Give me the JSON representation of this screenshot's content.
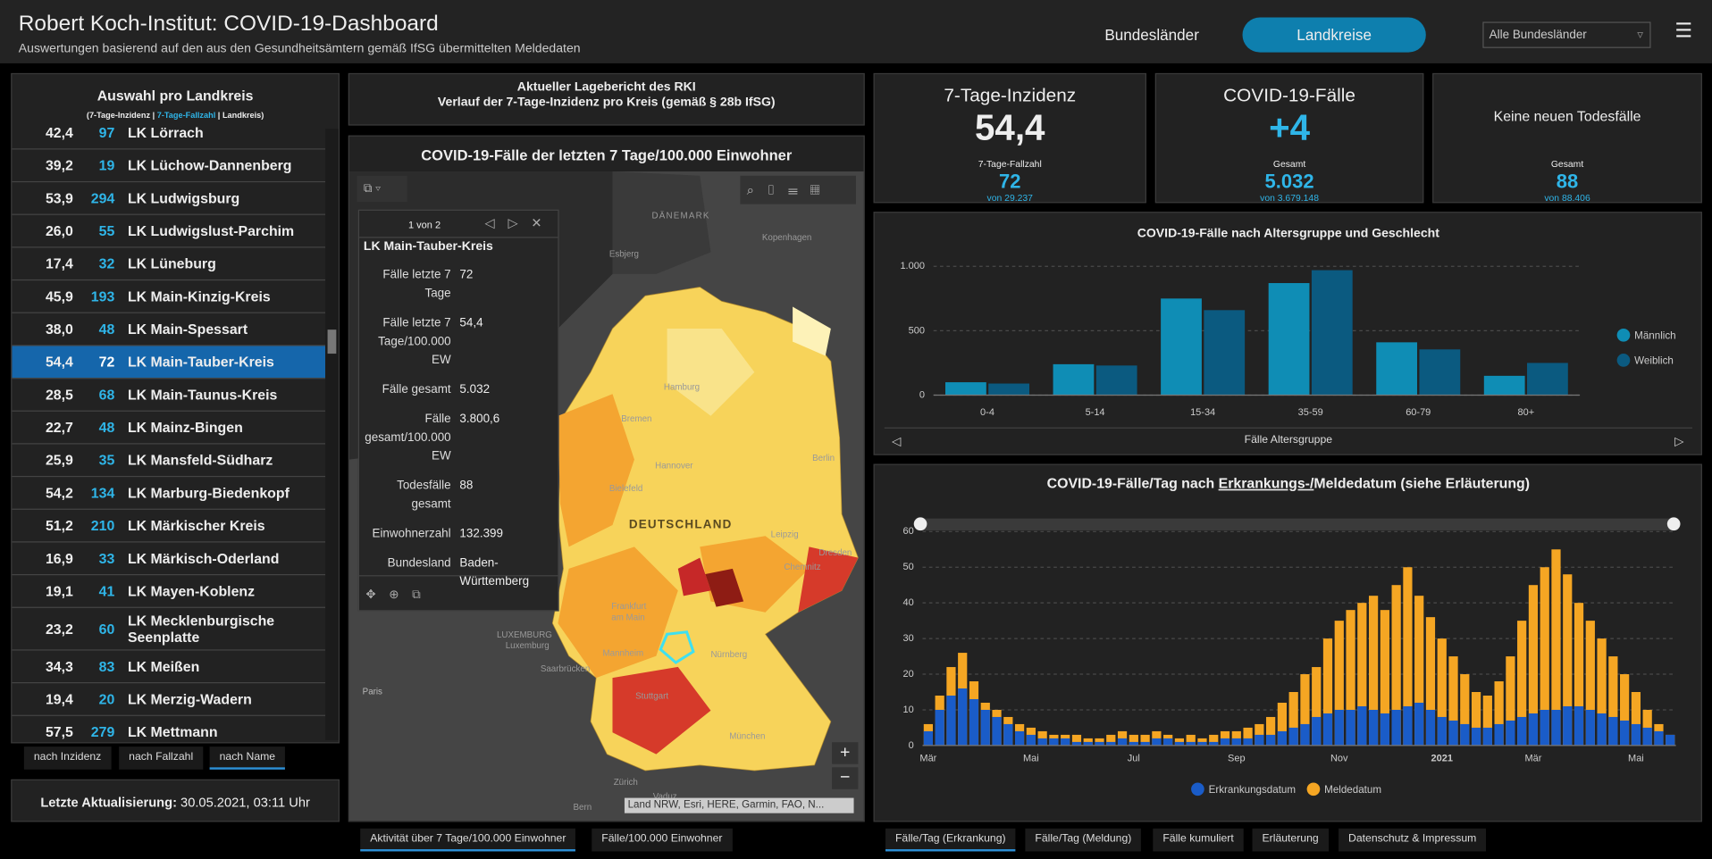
{
  "header": {
    "title": "Robert Koch-Institut: COVID-19-Dashboard",
    "subtitle": "Auswertungen basierend auf den aus den Gesundheitsämtern gemäß IfSG übermittelten Meldedaten",
    "nav": [
      "Bundesländer",
      "Landkreise"
    ],
    "dropdown": "Alle Bundesländer"
  },
  "district_list": {
    "title": "Auswahl pro Landkreis",
    "legend": [
      "(7-Tage-Inzidenz",
      "|",
      "7-Tage-Fallzahl",
      "|",
      "Landkreis)"
    ],
    "rows": [
      [
        "42,4",
        "97",
        "LK Lörrach"
      ],
      [
        "39,2",
        "19",
        "LK Lüchow-Dannenberg"
      ],
      [
        "53,9",
        "294",
        "LK Ludwigsburg"
      ],
      [
        "26,0",
        "55",
        "LK Ludwigslust-Parchim"
      ],
      [
        "17,4",
        "32",
        "LK Lüneburg"
      ],
      [
        "45,9",
        "193",
        "LK Main-Kinzig-Kreis"
      ],
      [
        "38,0",
        "48",
        "LK Main-Spessart"
      ],
      [
        "54,4",
        "72",
        "LK Main-Tauber-Kreis"
      ],
      [
        "28,5",
        "68",
        "LK Main-Taunus-Kreis"
      ],
      [
        "22,7",
        "48",
        "LK Mainz-Bingen"
      ],
      [
        "25,9",
        "35",
        "LK Mansfeld-Südharz"
      ],
      [
        "54,2",
        "134",
        "LK Marburg-Biedenkopf"
      ],
      [
        "51,2",
        "210",
        "LK Märkischer Kreis"
      ],
      [
        "16,9",
        "33",
        "LK Märkisch-Oderland"
      ],
      [
        "19,1",
        "41",
        "LK Mayen-Koblenz"
      ],
      [
        "23,2",
        "60",
        "LK Mecklenburgische Seenplatte"
      ],
      [
        "34,3",
        "83",
        "LK Meißen"
      ],
      [
        "19,4",
        "20",
        "LK Merzig-Wadern"
      ],
      [
        "57,5",
        "279",
        "LK Mettmann"
      ]
    ],
    "selected_row": 7,
    "sort_buttons": [
      "nach Inzidenz",
      "nach Fallzahl",
      "nach Name"
    ],
    "last_update": {
      "label": "Letzte Aktualisierung:",
      "value": "30.05.2021, 03:11 Uhr"
    }
  },
  "map": {
    "header": [
      "Aktueller Lagebericht des RKI",
      "Verlauf der 7-Tage-Inzidenz pro Kreis (gemäß § 28b IfSG)"
    ],
    "title": "COVID-19-Fälle der letzten 7 Tage/100.000 Einwohner",
    "popup": {
      "pager": "1 von 2",
      "title": "LK Main-Tauber-Kreis",
      "fields": [
        [
          "Fälle letzte 7 Tage",
          "72"
        ],
        [
          "Fälle letzte 7 Tage/100.000 EW",
          "54,4"
        ],
        [
          "Fälle gesamt",
          "5.032"
        ],
        [
          "Fälle gesamt/100.000 EW",
          "3.800,6"
        ],
        [
          "Todesfälle gesamt",
          "88"
        ],
        [
          "Einwohnerzahl",
          "132.399"
        ],
        [
          "Bundesland",
          "Baden-Württemberg"
        ]
      ]
    },
    "places": [
      "DÄNEMARK",
      "Kopenhagen",
      "Esbjerg",
      "Hamburg",
      "Bremen",
      "Hannover",
      "Berlin",
      "Bielefeld",
      "DEUTSCHLAND",
      "Leipzig",
      "Dresden",
      "Chemnitz",
      "Frankfurt am Main",
      "LUXEMBURG",
      "Luxemburg",
      "Mannheim",
      "Saarbrücken",
      "Nürnberg",
      "Stuttgart",
      "Paris",
      "München",
      "Zürich",
      "Vaduz",
      "Bern"
    ],
    "attribution": "Land NRW, Esri, HERE, Garmin, FAO, N...",
    "tabs": [
      "Aktivität über 7 Tage/100.000 Einwohner",
      "Fälle/100.000 Einwohner"
    ]
  },
  "kpis": [
    {
      "title": "7-Tage-Inzidenz",
      "value": "54,4",
      "sub_label": "7-Tage-Fallzahl",
      "sub_value": "72",
      "sub_note": "von 29.237"
    },
    {
      "title": "COVID-19-Fälle",
      "value": "+4",
      "sub_label": "Gesamt",
      "sub_value": "5.032",
      "sub_note": "von 3.679.148"
    },
    {
      "title": "Keine neuen Todesfälle",
      "sub_label": "Gesamt",
      "sub_value": "88",
      "sub_note": "von 88.406"
    }
  ],
  "chart_data": [
    {
      "type": "bar",
      "title": "COVID-19-Fälle nach Altersgruppe und Geschlecht",
      "categories": [
        "0-4",
        "5-14",
        "15-34",
        "35-59",
        "60-79",
        "80+"
      ],
      "series": [
        {
          "name": "Männlich",
          "color": "#0f8db5",
          "values": [
            100,
            240,
            750,
            870,
            410,
            150
          ]
        },
        {
          "name": "Weiblich",
          "color": "#0b5a80",
          "values": [
            90,
            230,
            660,
            970,
            355,
            250
          ]
        }
      ],
      "ylim": [
        0,
        1000
      ],
      "yticks": [
        0,
        500,
        {
          "value": 1000,
          "label": "1.000"
        }
      ],
      "xlabel": "Fälle Altersgruppe",
      "grid": true,
      "legend": "right"
    },
    {
      "type": "bar",
      "title": [
        "COVID-19-Fälle/Tag nach ",
        "Erkrankungs-/",
        "Meldedatum (siehe Erläuterung)"
      ],
      "categories": [
        "Mär",
        null,
        null,
        null,
        null,
        null,
        null,
        null,
        null,
        "Mai",
        null,
        null,
        null,
        null,
        null,
        null,
        null,
        null,
        "Jul",
        null,
        null,
        null,
        null,
        null,
        null,
        null,
        null,
        "Sep",
        null,
        null,
        null,
        null,
        null,
        null,
        null,
        null,
        "Nov",
        null,
        null,
        null,
        null,
        null,
        null,
        null,
        null,
        "2021",
        null,
        null,
        null,
        null,
        null,
        null,
        null,
        "Mär",
        null,
        null,
        null,
        null,
        null,
        null,
        null,
        null,
        "Mai",
        null,
        null,
        null
      ],
      "series": [
        {
          "name": "Meldedatum",
          "color": "#f5a623",
          "values": [
            6,
            14,
            22,
            26,
            18,
            12,
            10,
            8,
            6,
            5,
            4,
            3,
            3,
            3,
            2,
            2,
            3,
            4,
            3,
            3,
            4,
            3,
            2,
            3,
            2,
            3,
            4,
            4,
            5,
            6,
            8,
            12,
            15,
            20,
            22,
            30,
            35,
            38,
            40,
            42,
            38,
            45,
            50,
            42,
            36,
            30,
            25,
            20,
            15,
            14,
            18,
            25,
            35,
            45,
            50,
            55,
            48,
            40,
            35,
            30,
            25,
            20,
            15,
            10,
            6,
            3
          ]
        },
        {
          "name": "Erkrankungsdatum",
          "color": "#1a5cc8",
          "values": [
            4,
            10,
            14,
            16,
            13,
            10,
            8,
            6,
            4,
            3,
            2,
            2,
            2,
            1,
            1,
            1,
            1,
            2,
            1,
            1,
            2,
            2,
            1,
            1,
            1,
            1,
            2,
            2,
            2,
            3,
            3,
            4,
            5,
            6,
            8,
            9,
            10,
            10,
            11,
            10,
            9,
            10,
            11,
            12,
            10,
            8,
            7,
            6,
            5,
            5,
            6,
            7,
            8,
            9,
            10,
            10,
            11,
            11,
            10,
            9,
            8,
            7,
            6,
            5,
            4,
            3
          ]
        }
      ],
      "legend_order": [
        1,
        0
      ],
      "ylim": [
        0,
        60
      ],
      "yticks": [
        0,
        10,
        20,
        30,
        40,
        50,
        60
      ],
      "grid": true,
      "legend": "bottom"
    }
  ],
  "bottom_tabs": [
    "Fälle/Tag (Erkrankung)",
    "Fälle/Tag (Meldung)",
    "Fälle kumuliert",
    "Erläuterung",
    "Datenschutz & Impressum"
  ]
}
